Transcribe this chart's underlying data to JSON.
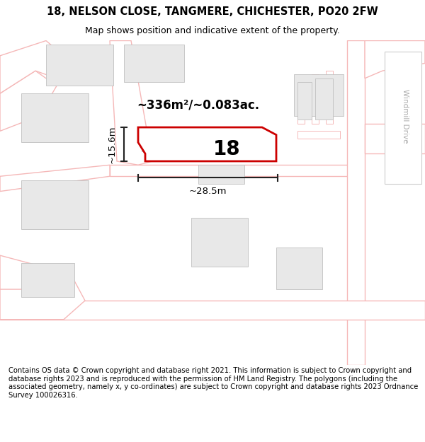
{
  "title_line1": "18, NELSON CLOSE, TANGMERE, CHICHESTER, PO20 2FW",
  "title_line2": "Map shows position and indicative extent of the property.",
  "footer_text": "Contains OS data © Crown copyright and database right 2021. This information is subject to Crown copyright and database rights 2023 and is reproduced with the permission of HM Land Registry. The polygons (including the associated geometry, namely x, y co-ordinates) are subject to Crown copyright and database rights 2023 Ordnance Survey 100026316.",
  "map_bg": "#ffffff",
  "road_line_color": "#f5b8b8",
  "building_color": "#e8e8e8",
  "building_edge": "#c0c0c0",
  "highlight_color": "#cc0000",
  "highlight_fill": "#ffffff",
  "dimension_color": "#222222",
  "windmill_label_color": "#aaaaaa",
  "windmill_drive_text": "Windmill Drive",
  "area_label": "~336m²/~0.083ac.",
  "width_label": "~28.5m",
  "height_label": "~15.6m",
  "number_label": "18",
  "title_fontsize": 10.5,
  "subtitle_fontsize": 9,
  "footer_fontsize": 7.2,
  "number_fontsize": 20,
  "area_fontsize": 12,
  "dim_fontsize": 9.5
}
